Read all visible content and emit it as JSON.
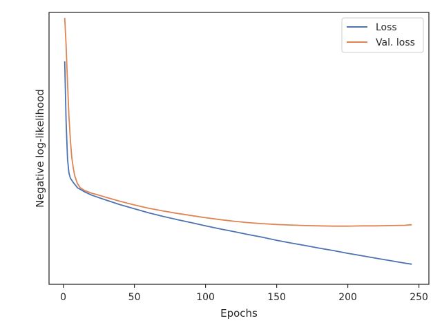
{
  "chart_data": {
    "type": "line",
    "title": "",
    "xlabel": "Epochs",
    "ylabel": "Negative log-likelihood",
    "xlim": [
      -10,
      257
    ],
    "ylim": [
      0,
      1
    ],
    "xticks": [
      0,
      50,
      100,
      150,
      200,
      250
    ],
    "yticks_shown": false,
    "grid": false,
    "legend_position": "top-right",
    "series": [
      {
        "name": "Loss",
        "color": "#4c72b0",
        "x": [
          1,
          2,
          3,
          4,
          5,
          7,
          10,
          15,
          20,
          30,
          40,
          50,
          60,
          70,
          80,
          90,
          100,
          110,
          120,
          130,
          140,
          150,
          160,
          170,
          180,
          190,
          200,
          210,
          220,
          230,
          240,
          245
        ],
        "y": [
          0.82,
          0.6,
          0.46,
          0.41,
          0.39,
          0.375,
          0.355,
          0.34,
          0.328,
          0.31,
          0.293,
          0.278,
          0.263,
          0.25,
          0.238,
          0.227,
          0.215,
          0.204,
          0.194,
          0.183,
          0.173,
          0.162,
          0.152,
          0.143,
          0.133,
          0.124,
          0.114,
          0.105,
          0.096,
          0.087,
          0.078,
          0.074
        ]
      },
      {
        "name": "Val. loss",
        "color": "#dd8452",
        "x": [
          1,
          2,
          3,
          4,
          5,
          6,
          7,
          8,
          10,
          12,
          15,
          20,
          25,
          30,
          40,
          50,
          60,
          70,
          80,
          90,
          100,
          110,
          120,
          130,
          140,
          150,
          160,
          170,
          180,
          190,
          200,
          210,
          220,
          230,
          240,
          245
        ],
        "y": [
          0.98,
          0.88,
          0.74,
          0.62,
          0.53,
          0.465,
          0.43,
          0.4,
          0.37,
          0.355,
          0.345,
          0.335,
          0.328,
          0.32,
          0.305,
          0.292,
          0.28,
          0.27,
          0.261,
          0.253,
          0.245,
          0.238,
          0.232,
          0.227,
          0.223,
          0.22,
          0.218,
          0.216,
          0.215,
          0.214,
          0.214,
          0.215,
          0.215,
          0.216,
          0.217,
          0.219
        ]
      }
    ]
  }
}
